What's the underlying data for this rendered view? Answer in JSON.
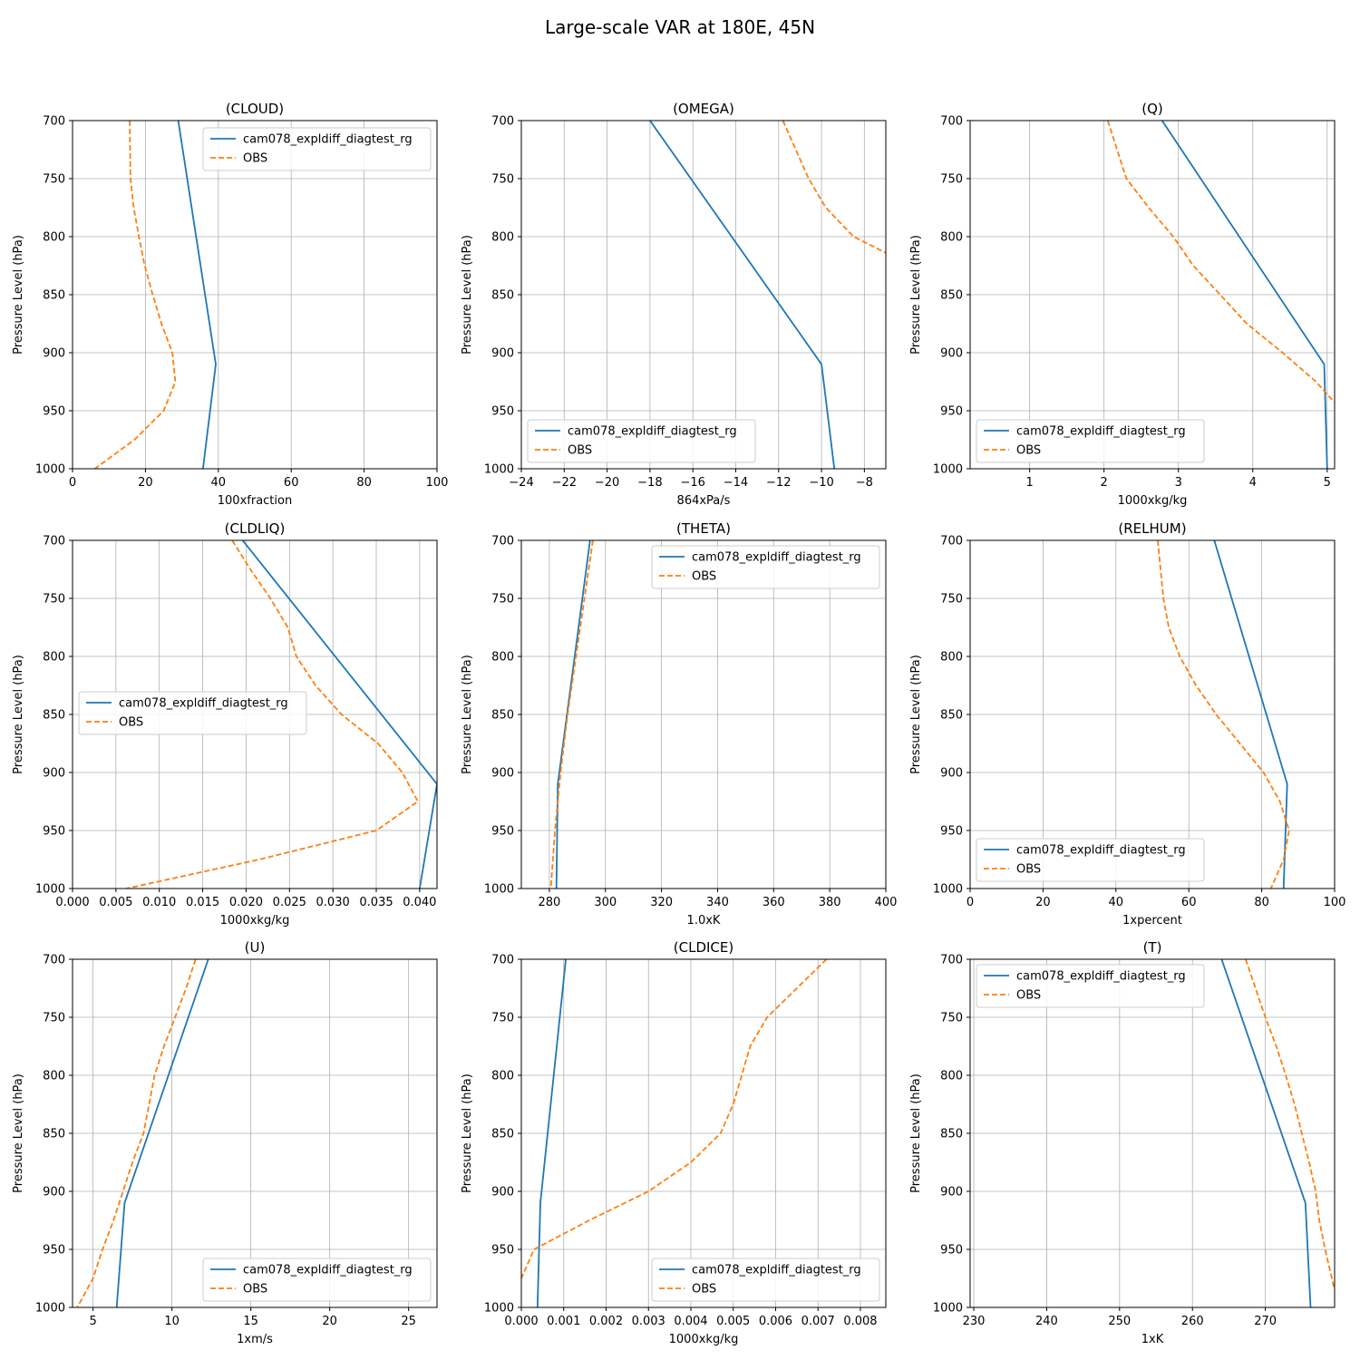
{
  "title": "Large-scale VAR at 180E, 45N",
  "series_names": [
    "cam078_expldiff_diagtest_rg",
    "OBS"
  ],
  "colors": {
    "model": "#1f77b4",
    "obs": "#ff7f0e",
    "grid": "#b0b0b0"
  },
  "chart_data": [
    {
      "type": "line",
      "title": "(CLOUD)",
      "xlabel": "100xfraction",
      "ylabel": "Pressure Level (hPa)",
      "xlim": [
        0,
        100
      ],
      "ylim": [
        700,
        1000
      ],
      "y_inverted": true,
      "xticks": [
        0,
        20,
        40,
        60,
        80,
        100
      ],
      "xtick_labels": [
        "0",
        "20",
        "40",
        "60",
        "80",
        "100"
      ],
      "yticks": [
        700,
        750,
        800,
        850,
        900,
        950,
        1000
      ],
      "ytick_labels": [
        "700",
        "750",
        "800",
        "850",
        "900",
        "950",
        "1000"
      ],
      "grid": true,
      "legend": "upper-right",
      "series": [
        {
          "name": "cam078_expldiff_diagtest_rg",
          "style": "solid",
          "points": [
            [
              29,
              700
            ],
            [
              39.3,
              910
            ],
            [
              35.8,
              1000
            ]
          ]
        },
        {
          "name": "OBS",
          "style": "dashed",
          "points": [
            [
              15.7,
              700
            ],
            [
              15.9,
              750
            ],
            [
              16.8,
              775
            ],
            [
              18.2,
              800
            ],
            [
              19.8,
              825
            ],
            [
              22.0,
              850
            ],
            [
              24.4,
              875
            ],
            [
              27.4,
              900
            ],
            [
              28.2,
              925
            ],
            [
              25.0,
              950
            ],
            [
              17.0,
              975
            ],
            [
              6.1,
              1000
            ]
          ]
        }
      ]
    },
    {
      "type": "line",
      "title": "(OMEGA)",
      "xlabel": "864xPa/s",
      "ylabel": "Pressure Level (hPa)",
      "xlim": [
        -24,
        -7
      ],
      "ylim": [
        700,
        1000
      ],
      "y_inverted": true,
      "xticks": [
        -24,
        -22,
        -20,
        -18,
        -16,
        -14,
        -12,
        -10,
        -8
      ],
      "xtick_labels": [
        "−24",
        "−22",
        "−20",
        "−18",
        "−16",
        "−14",
        "−12",
        "−10",
        "−8"
      ],
      "yticks": [
        700,
        750,
        800,
        850,
        900,
        950,
        1000
      ],
      "ytick_labels": [
        "700",
        "750",
        "800",
        "850",
        "900",
        "950",
        "1000"
      ],
      "grid": true,
      "legend": "lower-left",
      "series": [
        {
          "name": "cam078_expldiff_diagtest_rg",
          "style": "solid",
          "points": [
            [
              -18.0,
              700
            ],
            [
              -10.0,
              910
            ],
            [
              -9.4,
              1000
            ]
          ]
        },
        {
          "name": "OBS",
          "style": "dashed",
          "points": [
            [
              -11.8,
              700
            ],
            [
              -11.2,
              725
            ],
            [
              -10.6,
              750
            ],
            [
              -9.8,
              775
            ],
            [
              -8.5,
              800
            ],
            [
              -7.0,
              814
            ]
          ]
        }
      ]
    },
    {
      "type": "line",
      "title": "(Q)",
      "xlabel": "1000xkg/kg",
      "ylabel": "Pressure Level (hPa)",
      "xlim": [
        0.2,
        5.1
      ],
      "ylim": [
        700,
        1000
      ],
      "y_inverted": true,
      "xticks": [
        1,
        2,
        3,
        4,
        5
      ],
      "xtick_labels": [
        "1",
        "2",
        "3",
        "4",
        "5"
      ],
      "yticks": [
        700,
        750,
        800,
        850,
        900,
        950,
        1000
      ],
      "ytick_labels": [
        "700",
        "750",
        "800",
        "850",
        "900",
        "950",
        "1000"
      ],
      "grid": true,
      "legend": "lower-left",
      "series": [
        {
          "name": "cam078_expldiff_diagtest_rg",
          "style": "solid",
          "points": [
            [
              2.78,
              700
            ],
            [
              4.96,
              910
            ],
            [
              5.0,
              1000
            ]
          ]
        },
        {
          "name": "OBS",
          "style": "dashed",
          "points": [
            [
              2.05,
              700
            ],
            [
              2.3,
              750
            ],
            [
              2.6,
              775
            ],
            [
              2.93,
              800
            ],
            [
              3.2,
              825
            ],
            [
              3.56,
              850
            ],
            [
              3.92,
              875
            ],
            [
              4.4,
              900
            ],
            [
              4.85,
              925
            ],
            [
              5.1,
              943
            ]
          ]
        }
      ]
    },
    {
      "type": "line",
      "title": "(CLDLIQ)",
      "xlabel": "1000xkg/kg",
      "ylabel": "Pressure Level (hPa)",
      "xlim": [
        0,
        0.042
      ],
      "ylim": [
        700,
        1000
      ],
      "y_inverted": true,
      "xticks": [
        0,
        0.005,
        0.01,
        0.015,
        0.02,
        0.025,
        0.03,
        0.035,
        0.04
      ],
      "xtick_labels": [
        "0.000",
        "0.005",
        "0.010",
        "0.015",
        "0.020",
        "0.025",
        "0.030",
        "0.035",
        "0.040"
      ],
      "yticks": [
        700,
        750,
        800,
        850,
        900,
        950,
        1000
      ],
      "ytick_labels": [
        "700",
        "750",
        "800",
        "850",
        "900",
        "950",
        "1000"
      ],
      "grid": true,
      "legend": "center-left",
      "series": [
        {
          "name": "cam078_expldiff_diagtest_rg",
          "style": "solid",
          "points": [
            [
              0.0196,
              700
            ],
            [
              0.042,
              910
            ],
            [
              0.04,
              1000
            ]
          ]
        },
        {
          "name": "OBS",
          "style": "dashed",
          "points": [
            [
              0.0184,
              700
            ],
            [
              0.0205,
              725
            ],
            [
              0.0228,
              750
            ],
            [
              0.0248,
              775
            ],
            [
              0.0258,
              800
            ],
            [
              0.028,
              825
            ],
            [
              0.031,
              850
            ],
            [
              0.0352,
              875
            ],
            [
              0.038,
              900
            ],
            [
              0.0398,
              925
            ],
            [
              0.035,
              950
            ],
            [
              0.0215,
              975
            ],
            [
              0.0062,
              1000
            ]
          ]
        }
      ]
    },
    {
      "type": "line",
      "title": "(THETA)",
      "xlabel": "1.0xK",
      "ylabel": "Pressure Level (hPa)",
      "xlim": [
        270,
        400
      ],
      "ylim": [
        700,
        1000
      ],
      "y_inverted": true,
      "xticks": [
        280,
        300,
        320,
        340,
        360,
        380,
        400
      ],
      "xtick_labels": [
        "280",
        "300",
        "320",
        "340",
        "360",
        "380",
        "400"
      ],
      "yticks": [
        700,
        750,
        800,
        850,
        900,
        950,
        1000
      ],
      "ytick_labels": [
        "700",
        "750",
        "800",
        "850",
        "900",
        "950",
        "1000"
      ],
      "grid": true,
      "legend": "upper-right",
      "series": [
        {
          "name": "cam078_expldiff_diagtest_rg",
          "style": "solid",
          "points": [
            [
              294.5,
              700
            ],
            [
              283.0,
              910
            ],
            [
              282.5,
              1000
            ]
          ]
        },
        {
          "name": "OBS",
          "style": "dashed",
          "points": [
            [
              295.5,
              700
            ],
            [
              292.5,
              750
            ],
            [
              289.5,
              800
            ],
            [
              286.5,
              850
            ],
            [
              284.0,
              900
            ],
            [
              282.0,
              950
            ],
            [
              280.5,
              1000
            ]
          ]
        }
      ]
    },
    {
      "type": "line",
      "title": "(RELHUM)",
      "xlabel": "1xpercent",
      "ylabel": "Pressure Level (hPa)",
      "xlim": [
        0,
        100
      ],
      "ylim": [
        700,
        1000
      ],
      "y_inverted": true,
      "xticks": [
        0,
        20,
        40,
        60,
        80,
        100
      ],
      "xtick_labels": [
        "0",
        "20",
        "40",
        "60",
        "80",
        "100"
      ],
      "yticks": [
        700,
        750,
        800,
        850,
        900,
        950,
        1000
      ],
      "ytick_labels": [
        "700",
        "750",
        "800",
        "850",
        "900",
        "950",
        "1000"
      ],
      "grid": true,
      "legend": "lower-left",
      "series": [
        {
          "name": "cam078_expldiff_diagtest_rg",
          "style": "solid",
          "points": [
            [
              67,
              700
            ],
            [
              87,
              910
            ],
            [
              86,
              1000
            ]
          ]
        },
        {
          "name": "OBS",
          "style": "dashed",
          "points": [
            [
              51.5,
              700
            ],
            [
              53,
              750
            ],
            [
              54.5,
              775
            ],
            [
              57.5,
              800
            ],
            [
              62,
              825
            ],
            [
              67.5,
              850
            ],
            [
              74,
              875
            ],
            [
              80.5,
              900
            ],
            [
              85,
              925
            ],
            [
              87.5,
              950
            ],
            [
              86,
              975
            ],
            [
              82.5,
              1000
            ]
          ]
        }
      ]
    },
    {
      "type": "line",
      "title": "(U)",
      "xlabel": "1xm/s",
      "ylabel": "Pressure Level (hPa)",
      "xlim": [
        3.7,
        26.8
      ],
      "ylim": [
        700,
        1000
      ],
      "y_inverted": true,
      "xticks": [
        5,
        10,
        15,
        20,
        25
      ],
      "xtick_labels": [
        "5",
        "10",
        "15",
        "20",
        "25"
      ],
      "yticks": [
        700,
        750,
        800,
        850,
        900,
        950,
        1000
      ],
      "ytick_labels": [
        "700",
        "750",
        "800",
        "850",
        "900",
        "950",
        "1000"
      ],
      "grid": true,
      "legend": "lower-right",
      "series": [
        {
          "name": "cam078_expldiff_diagtest_rg",
          "style": "solid",
          "points": [
            [
              12.3,
              700
            ],
            [
              7.0,
              910
            ],
            [
              6.5,
              1000
            ]
          ]
        },
        {
          "name": "OBS",
          "style": "dashed",
          "points": [
            [
              11.5,
              700
            ],
            [
              10.9,
              725
            ],
            [
              10.2,
              750
            ],
            [
              9.5,
              775
            ],
            [
              8.9,
              800
            ],
            [
              8.2,
              850
            ],
            [
              7.5,
              875
            ],
            [
              6.9,
              900
            ],
            [
              6.3,
              925
            ],
            [
              5.6,
              950
            ],
            [
              5.0,
              975
            ],
            [
              4.0,
              1000
            ]
          ]
        }
      ]
    },
    {
      "type": "line",
      "title": "(CLDICE)",
      "xlabel": "1000xkg/kg",
      "ylabel": "Pressure Level (hPa)",
      "xlim": [
        0,
        0.0086
      ],
      "ylim": [
        700,
        1000
      ],
      "y_inverted": true,
      "xticks": [
        0,
        0.001,
        0.002,
        0.003,
        0.004,
        0.005,
        0.006,
        0.007,
        0.008
      ],
      "xtick_labels": [
        "0.000",
        "0.001",
        "0.002",
        "0.003",
        "0.004",
        "0.005",
        "0.006",
        "0.007",
        "0.008"
      ],
      "yticks": [
        700,
        750,
        800,
        850,
        900,
        950,
        1000
      ],
      "ytick_labels": [
        "700",
        "750",
        "800",
        "850",
        "900",
        "950",
        "1000"
      ],
      "grid": true,
      "legend": "lower-right",
      "series": [
        {
          "name": "cam078_expldiff_diagtest_rg",
          "style": "solid",
          "points": [
            [
              0.00105,
              700
            ],
            [
              0.00045,
              910
            ],
            [
              0.00038,
              1000
            ]
          ]
        },
        {
          "name": "OBS",
          "style": "dashed",
          "points": [
            [
              0.0072,
              700
            ],
            [
              0.0065,
              725
            ],
            [
              0.0058,
              750
            ],
            [
              0.0054,
              775
            ],
            [
              0.0052,
              800
            ],
            [
              0.005,
              825
            ],
            [
              0.0047,
              850
            ],
            [
              0.004,
              875
            ],
            [
              0.003,
              900
            ],
            [
              0.0016,
              925
            ],
            [
              0.0003,
              950
            ],
            [
              0.0,
              975
            ]
          ]
        }
      ]
    },
    {
      "type": "line",
      "title": "(T)",
      "xlabel": "1xK",
      "ylabel": "Pressure Level (hPa)",
      "xlim": [
        229.5,
        279.5
      ],
      "ylim": [
        700,
        1000
      ],
      "y_inverted": true,
      "xticks": [
        230,
        240,
        250,
        260,
        270
      ],
      "xtick_labels": [
        "230",
        "240",
        "250",
        "260",
        "270"
      ],
      "yticks": [
        700,
        750,
        800,
        850,
        900,
        950,
        1000
      ],
      "ytick_labels": [
        "700",
        "750",
        "800",
        "850",
        "900",
        "950",
        "1000"
      ],
      "grid": true,
      "legend": "upper-left",
      "series": [
        {
          "name": "cam078_expldiff_diagtest_rg",
          "style": "solid",
          "points": [
            [
              264,
              700
            ],
            [
              275.5,
              910
            ],
            [
              276.2,
              1000
            ]
          ]
        },
        {
          "name": "OBS",
          "style": "dashed",
          "points": [
            [
              267.3,
              700
            ],
            [
              270,
              750
            ],
            [
              271.5,
              775
            ],
            [
              272.8,
              800
            ],
            [
              274,
              825
            ],
            [
              275,
              850
            ],
            [
              276,
              875
            ],
            [
              276.9,
              900
            ],
            [
              277.4,
              925
            ],
            [
              278.2,
              950
            ],
            [
              279.5,
              985
            ]
          ]
        }
      ]
    }
  ]
}
